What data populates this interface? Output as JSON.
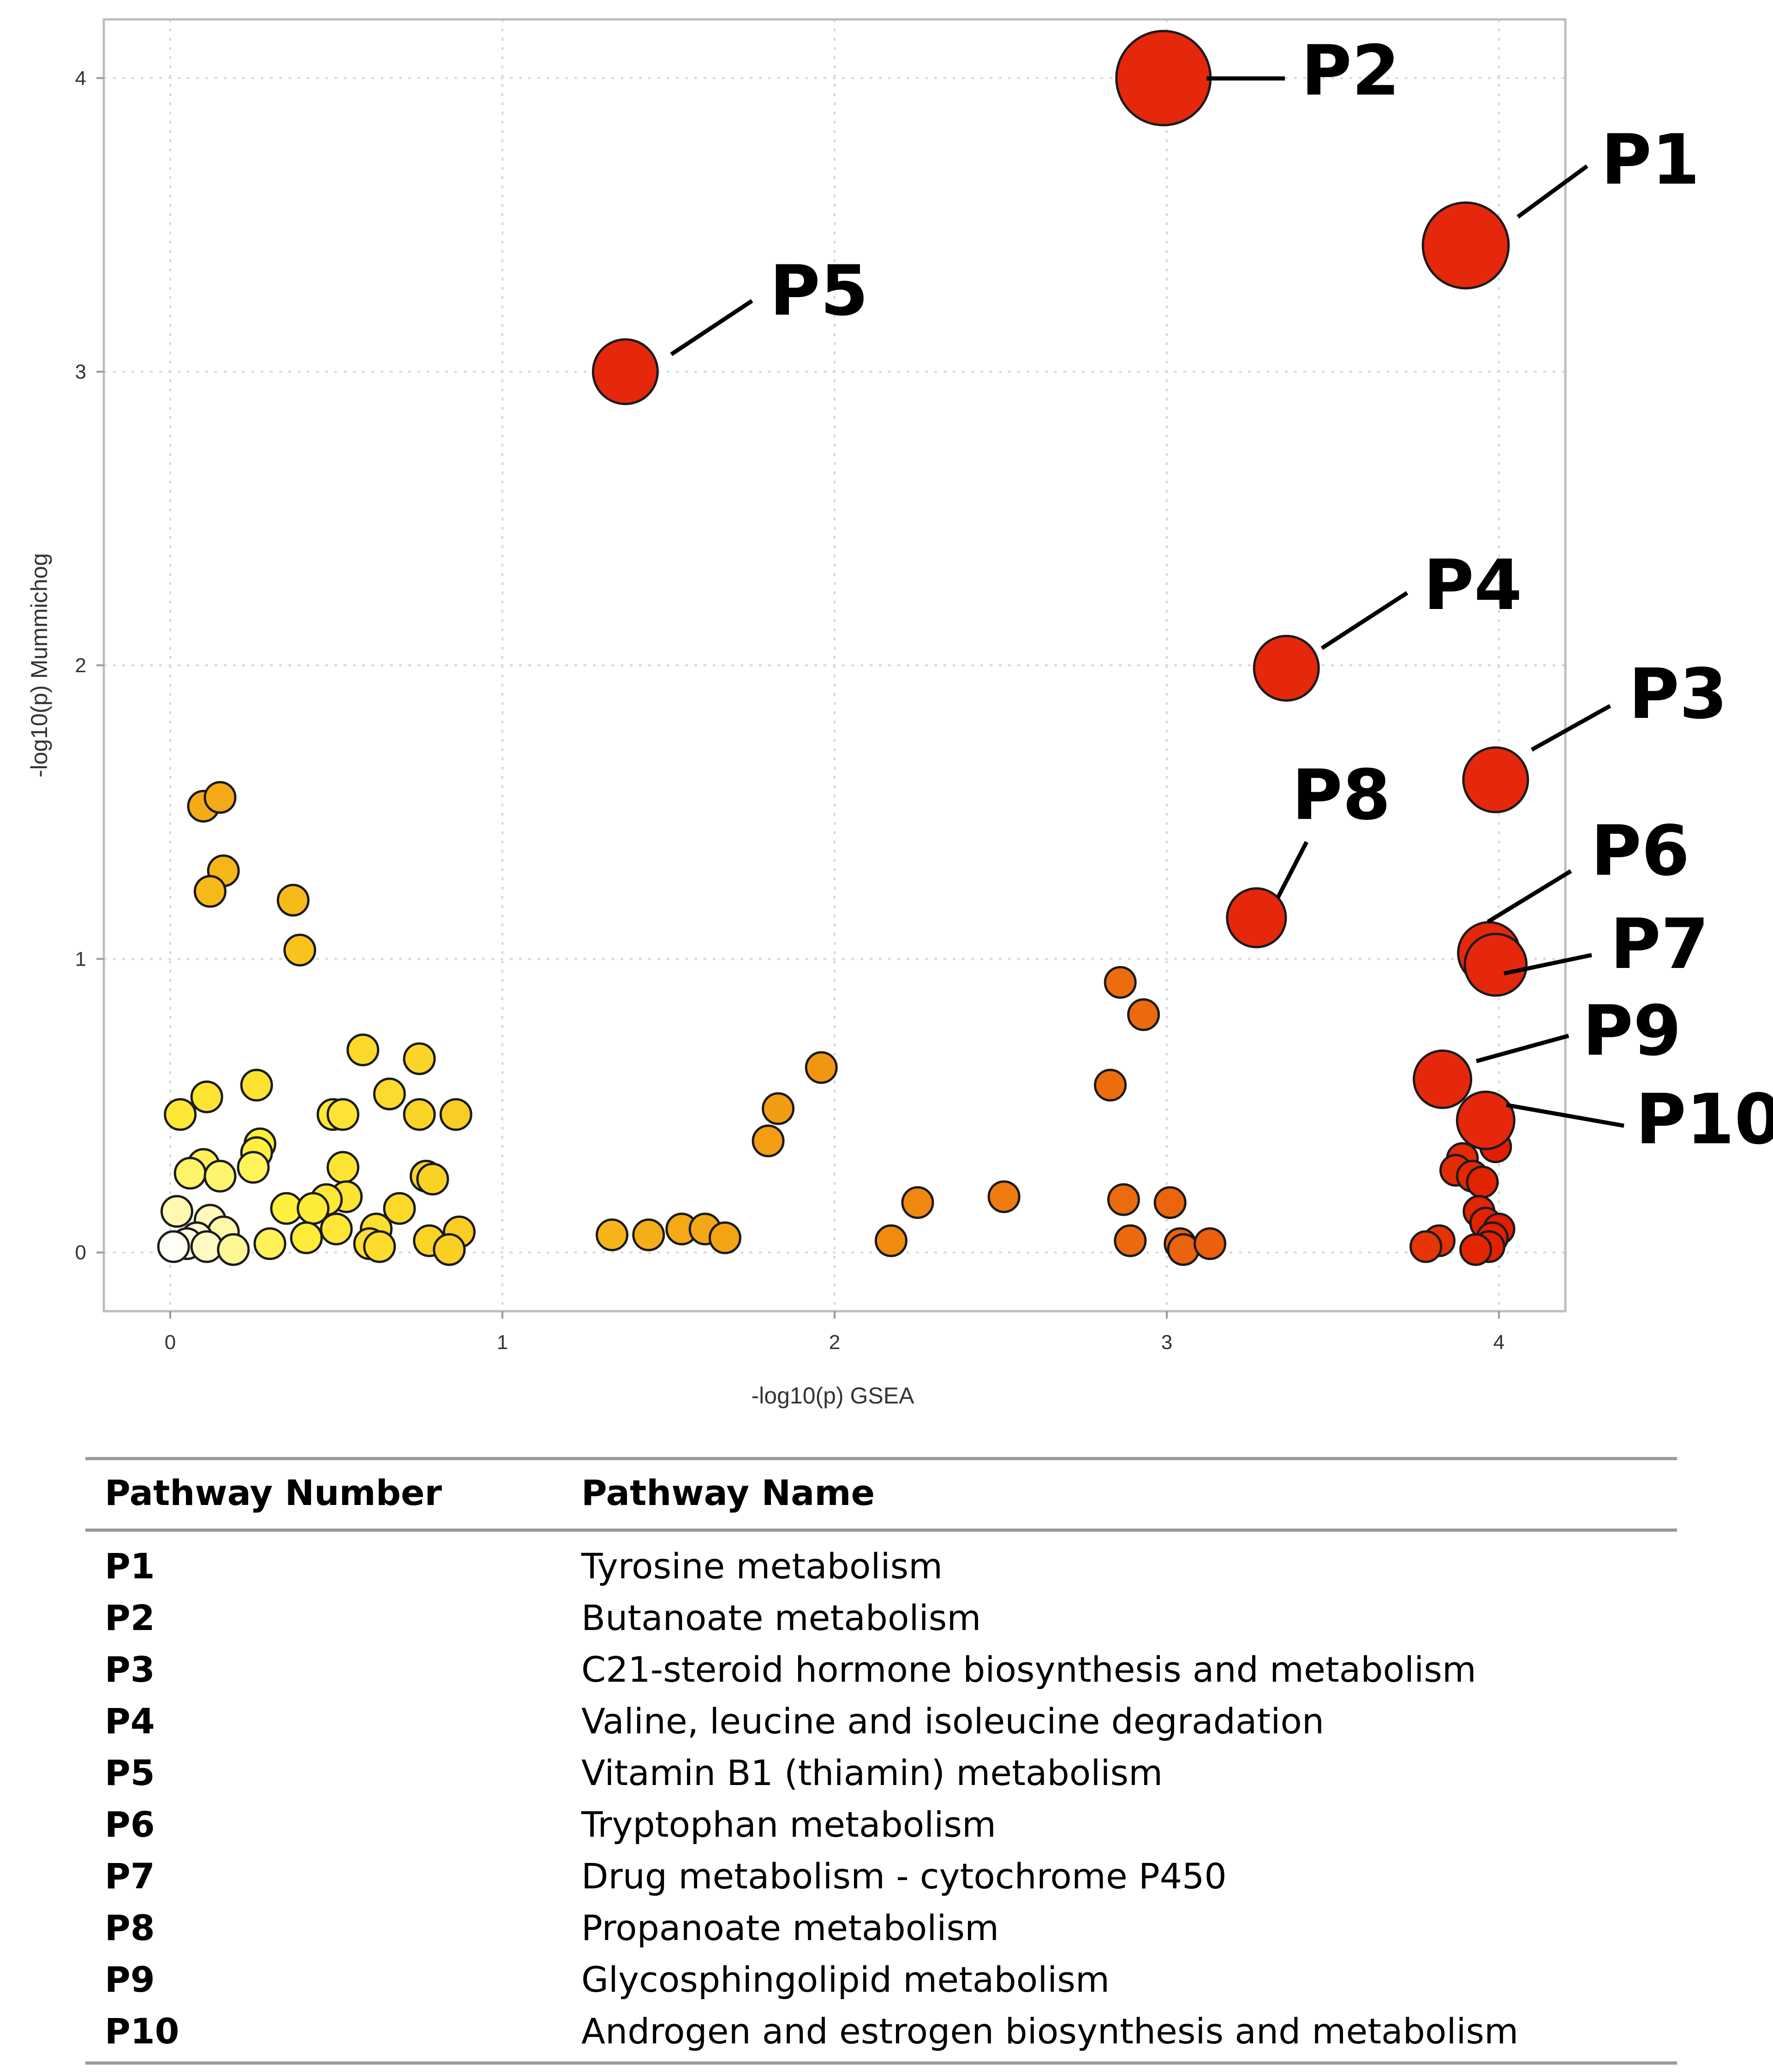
{
  "chart_data": {
    "type": "scatter",
    "title": "",
    "xlabel": "-log10(p) GSEA",
    "ylabel": "-log10(p) Mummichog",
    "xlim": [
      -0.2,
      4.2
    ],
    "ylim": [
      -0.2,
      4.2
    ],
    "xticks": [
      "0",
      "1",
      "2",
      "3",
      "4"
    ],
    "yticks": [
      "0",
      "1",
      "2",
      "3",
      "4"
    ],
    "grid": true,
    "color_scale": [
      "#ffffff",
      "#fff03c",
      "#f7c41c",
      "#f08a10",
      "#e84a0c",
      "#e11e00"
    ],
    "highlighted": [
      {
        "label": "P1",
        "x": 3.9,
        "y": 3.43,
        "size": 3.43
      },
      {
        "label": "P2",
        "x": 2.99,
        "y": 4.0,
        "size": 4.0
      },
      {
        "label": "P3",
        "x": 3.99,
        "y": 1.61,
        "size": 2.0
      },
      {
        "label": "P4",
        "x": 3.36,
        "y": 1.99,
        "size": 2.0
      },
      {
        "label": "P5",
        "x": 1.37,
        "y": 3.0,
        "size": 2.0
      },
      {
        "label": "P6",
        "x": 3.97,
        "y": 1.02,
        "size": 1.8
      },
      {
        "label": "P7",
        "x": 3.99,
        "y": 0.98,
        "size": 1.8
      },
      {
        "label": "P8",
        "x": 3.27,
        "y": 1.14,
        "size": 1.6
      },
      {
        "label": "P9",
        "x": 3.83,
        "y": 0.59,
        "size": 1.5
      },
      {
        "label": "P10",
        "x": 3.96,
        "y": 0.45,
        "size": 1.5
      }
    ],
    "points": [
      {
        "x": 0.1,
        "y": 1.52
      },
      {
        "x": 0.15,
        "y": 1.55
      },
      {
        "x": 0.16,
        "y": 1.3
      },
      {
        "x": 0.12,
        "y": 1.23
      },
      {
        "x": 0.37,
        "y": 1.2
      },
      {
        "x": 0.39,
        "y": 1.03
      },
      {
        "x": 0.58,
        "y": 0.69
      },
      {
        "x": 0.75,
        "y": 0.66
      },
      {
        "x": 0.26,
        "y": 0.57
      },
      {
        "x": 0.11,
        "y": 0.53
      },
      {
        "x": 0.66,
        "y": 0.54
      },
      {
        "x": 0.03,
        "y": 0.47
      },
      {
        "x": 0.49,
        "y": 0.47
      },
      {
        "x": 0.52,
        "y": 0.47
      },
      {
        "x": 0.75,
        "y": 0.47
      },
      {
        "x": 0.86,
        "y": 0.47
      },
      {
        "x": 0.27,
        "y": 0.37
      },
      {
        "x": 0.26,
        "y": 0.34
      },
      {
        "x": 0.52,
        "y": 0.29
      },
      {
        "x": 0.1,
        "y": 0.3
      },
      {
        "x": 0.06,
        "y": 0.27
      },
      {
        "x": 0.15,
        "y": 0.26
      },
      {
        "x": 0.25,
        "y": 0.29
      },
      {
        "x": 0.77,
        "y": 0.26
      },
      {
        "x": 0.79,
        "y": 0.25
      },
      {
        "x": 0.53,
        "y": 0.19
      },
      {
        "x": 0.47,
        "y": 0.18
      },
      {
        "x": 0.02,
        "y": 0.14
      },
      {
        "x": 0.35,
        "y": 0.15
      },
      {
        "x": 0.43,
        "y": 0.15
      },
      {
        "x": 0.69,
        "y": 0.15
      },
      {
        "x": 0.12,
        "y": 0.11
      },
      {
        "x": 0.16,
        "y": 0.07
      },
      {
        "x": 0.5,
        "y": 0.08
      },
      {
        "x": 0.62,
        "y": 0.08
      },
      {
        "x": 0.41,
        "y": 0.05
      },
      {
        "x": 0.78,
        "y": 0.04
      },
      {
        "x": 0.87,
        "y": 0.07
      },
      {
        "x": 0.08,
        "y": 0.05
      },
      {
        "x": 0.05,
        "y": 0.03
      },
      {
        "x": 0.01,
        "y": 0.02
      },
      {
        "x": 0.11,
        "y": 0.02
      },
      {
        "x": 0.19,
        "y": 0.01
      },
      {
        "x": 0.3,
        "y": 0.03
      },
      {
        "x": 0.6,
        "y": 0.03
      },
      {
        "x": 0.63,
        "y": 0.02
      },
      {
        "x": 0.84,
        "y": 0.01
      },
      {
        "x": 1.33,
        "y": 0.06
      },
      {
        "x": 1.44,
        "y": 0.06
      },
      {
        "x": 1.54,
        "y": 0.08
      },
      {
        "x": 1.61,
        "y": 0.08
      },
      {
        "x": 1.67,
        "y": 0.05
      },
      {
        "x": 1.96,
        "y": 0.63
      },
      {
        "x": 1.83,
        "y": 0.49
      },
      {
        "x": 1.8,
        "y": 0.38
      },
      {
        "x": 2.17,
        "y": 0.04
      },
      {
        "x": 2.25,
        "y": 0.17
      },
      {
        "x": 2.51,
        "y": 0.19
      },
      {
        "x": 2.86,
        "y": 0.92
      },
      {
        "x": 2.93,
        "y": 0.81
      },
      {
        "x": 2.83,
        "y": 0.57
      },
      {
        "x": 2.87,
        "y": 0.18
      },
      {
        "x": 3.01,
        "y": 0.17
      },
      {
        "x": 2.89,
        "y": 0.04
      },
      {
        "x": 3.04,
        "y": 0.03
      },
      {
        "x": 3.05,
        "y": 0.01
      },
      {
        "x": 3.13,
        "y": 0.03
      },
      {
        "x": 3.89,
        "y": 0.32
      },
      {
        "x": 3.99,
        "y": 0.36
      },
      {
        "x": 3.87,
        "y": 0.28
      },
      {
        "x": 3.92,
        "y": 0.26
      },
      {
        "x": 3.95,
        "y": 0.24
      },
      {
        "x": 3.94,
        "y": 0.14
      },
      {
        "x": 3.96,
        "y": 0.1
      },
      {
        "x": 4.0,
        "y": 0.08
      },
      {
        "x": 3.98,
        "y": 0.05
      },
      {
        "x": 3.82,
        "y": 0.04
      },
      {
        "x": 3.78,
        "y": 0.02
      },
      {
        "x": 3.97,
        "y": 0.02
      },
      {
        "x": 3.93,
        "y": 0.01
      }
    ]
  },
  "table": {
    "headers": [
      "Pathway Number",
      "Pathway Name"
    ],
    "rows": [
      {
        "num": "P1",
        "name": "Tyrosine metabolism"
      },
      {
        "num": "P2",
        "name": "Butanoate metabolism"
      },
      {
        "num": "P3",
        "name": "C21-steroid hormone biosynthesis and metabolism"
      },
      {
        "num": "P4",
        "name": "Valine, leucine and isoleucine degradation"
      },
      {
        "num": "P5",
        "name": "Vitamin B1 (thiamin) metabolism"
      },
      {
        "num": "P6",
        "name": "Tryptophan metabolism"
      },
      {
        "num": "P7",
        "name": "Drug metabolism - cytochrome P450"
      },
      {
        "num": "P8",
        "name": "Propanoate metabolism"
      },
      {
        "num": "P9",
        "name": "Glycosphingolipid metabolism"
      },
      {
        "num": "P10",
        "name": "Androgen and estrogen biosynthesis and metabolism"
      }
    ]
  }
}
